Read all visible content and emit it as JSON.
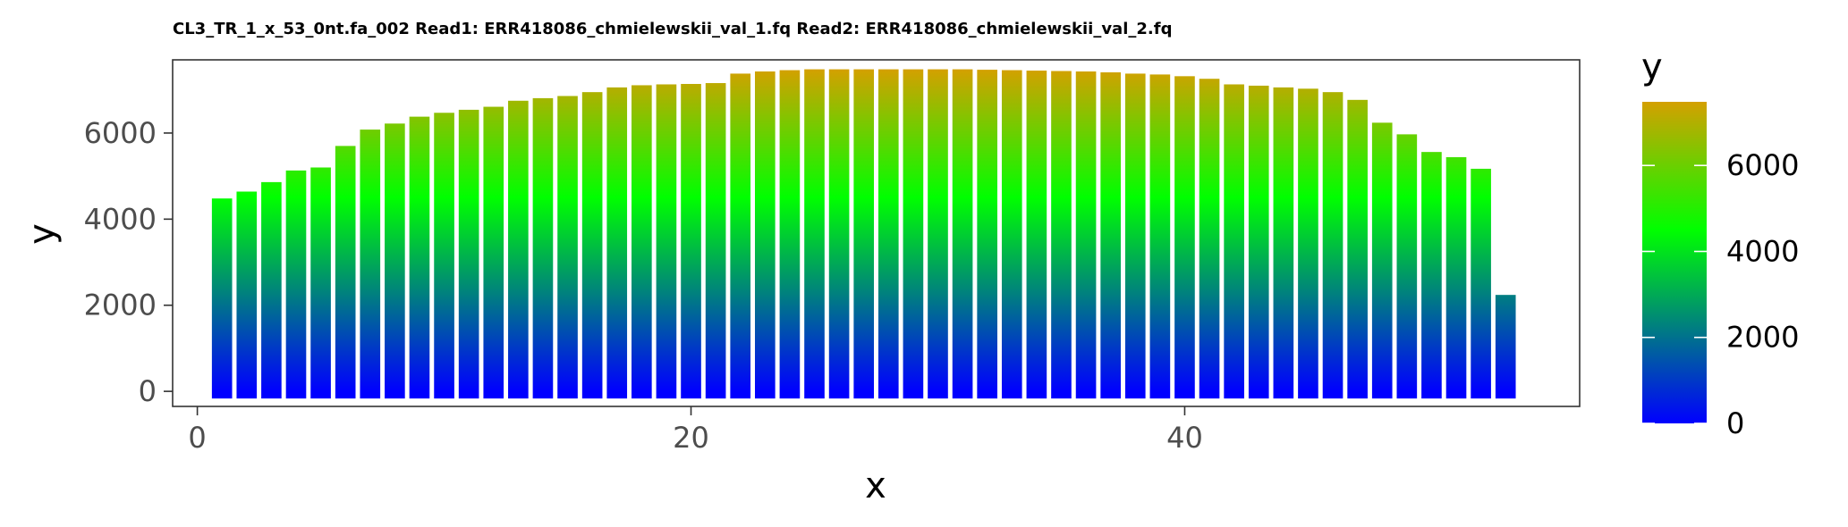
{
  "chart_data": {
    "type": "bar",
    "title": "CL3_TR_1_x_53_0nt.fa_002 Read1: ERR418086_chmielewskii_val_1.fq Read2: ERR418086_chmielewskii_val_2.fq",
    "xlabel": "x",
    "ylabel": "y",
    "x": [
      1,
      2,
      3,
      4,
      5,
      6,
      7,
      8,
      9,
      10,
      11,
      12,
      13,
      14,
      15,
      16,
      17,
      18,
      19,
      20,
      21,
      22,
      23,
      24,
      25,
      26,
      27,
      28,
      29,
      30,
      31,
      32,
      33,
      34,
      35,
      36,
      37,
      38,
      39,
      40,
      41,
      42,
      43,
      44,
      45,
      46,
      47,
      48,
      49,
      50,
      51,
      52,
      53
    ],
    "values": [
      4480,
      4640,
      4860,
      5130,
      5200,
      5700,
      6080,
      6220,
      6380,
      6470,
      6540,
      6610,
      6750,
      6810,
      6860,
      6950,
      7060,
      7110,
      7130,
      7140,
      7160,
      7380,
      7430,
      7460,
      7480,
      7480,
      7480,
      7480,
      7480,
      7480,
      7480,
      7470,
      7460,
      7450,
      7440,
      7430,
      7410,
      7380,
      7360,
      7320,
      7260,
      7130,
      7100,
      7060,
      7030,
      6950,
      6770,
      6240,
      5970,
      5560,
      5440,
      5170,
      2240
    ],
    "xlim": [
      -1,
      56
    ],
    "ylim": [
      -350,
      7700
    ],
    "xticks": [
      0,
      20,
      40
    ],
    "yticks": [
      0,
      2000,
      4000,
      6000
    ],
    "xtick_labels": [
      "0",
      "20",
      "40"
    ],
    "ytick_labels": [
      "0",
      "2000",
      "4000",
      "6000"
    ],
    "grid": false,
    "fill_gradient": {
      "low": "#0000FF",
      "mid": "#00FF00",
      "high": "#D4A000",
      "midpoint": 4500
    },
    "legend": {
      "title": "y",
      "placement": "right",
      "range": [
        0,
        7480
      ],
      "breaks": [
        0,
        2000,
        4000,
        6000
      ],
      "labels": [
        "0",
        "2000",
        "4000",
        "6000"
      ]
    }
  }
}
